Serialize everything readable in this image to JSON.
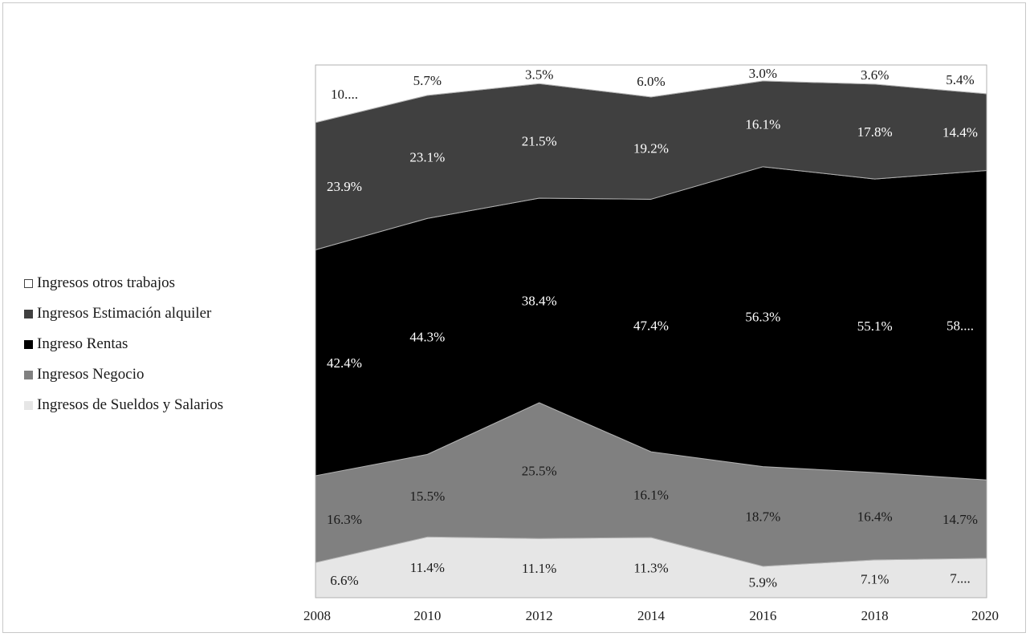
{
  "chart_data": {
    "type": "area",
    "stacked": true,
    "percent": true,
    "title": "",
    "xlabel": "",
    "ylabel": "",
    "x": [
      "2008",
      "2010",
      "2012",
      "2014",
      "2016",
      "2018",
      "2020"
    ],
    "ylim": [
      0,
      100
    ],
    "legend_position": "left",
    "series": [
      {
        "name": "Ingresos de Sueldos y Salarios",
        "color": "#e6e6e6",
        "text_color": "#1a1a1a",
        "values": [
          6.6,
          11.4,
          11.1,
          11.3,
          5.9,
          7.1,
          7.4
        ],
        "labels": [
          "6.6%",
          "11.4%",
          "11.1%",
          "11.3%",
          "5.9%",
          "7.1%",
          "7...."
        ]
      },
      {
        "name": "Ingresos Negocio",
        "color": "#808080",
        "text_color": "#1a1a1a",
        "values": [
          16.3,
          15.5,
          25.5,
          16.1,
          18.7,
          16.4,
          14.7
        ],
        "labels": [
          "16.3%",
          "15.5%",
          "25.5%",
          "16.1%",
          "18.7%",
          "16.4%",
          "14.7%"
        ]
      },
      {
        "name": "Ingreso Rentas",
        "color": "#000000",
        "text_color": "#ffffff",
        "values": [
          42.4,
          44.3,
          38.4,
          47.4,
          56.3,
          55.1,
          58.1
        ],
        "labels": [
          "42.4%",
          "44.3%",
          "38.4%",
          "47.4%",
          "56.3%",
          "55.1%",
          "58...."
        ]
      },
      {
        "name": "Ingresos Estimación alquiler",
        "color": "#404040",
        "text_color": "#ffffff",
        "values": [
          23.9,
          23.1,
          21.5,
          19.2,
          16.1,
          17.8,
          14.4
        ],
        "labels": [
          "23.9%",
          "23.1%",
          "21.5%",
          "19.2%",
          "16.1%",
          "17.8%",
          "14.4%"
        ]
      },
      {
        "name": "Ingresos otros trabajos",
        "color": "#ffffff",
        "text_color": "#1a1a1a",
        "values": [
          10.8,
          5.7,
          3.5,
          6.0,
          3.0,
          3.6,
          5.4
        ],
        "labels": [
          "10....",
          "5.7%",
          "3.5%",
          "6.0%",
          "3.0%",
          "3.6%",
          "5.4%"
        ]
      }
    ],
    "legend": [
      {
        "label": "Ingresos otros trabajos",
        "color": "#ffffff"
      },
      {
        "label": "Ingresos Estimación alquiler",
        "color": "#404040"
      },
      {
        "label": "Ingreso Rentas",
        "color": "#000000"
      },
      {
        "label": "Ingresos Negocio",
        "color": "#808080"
      },
      {
        "label": "Ingresos de Sueldos y Salarios",
        "color": "#e6e6e6"
      }
    ]
  }
}
